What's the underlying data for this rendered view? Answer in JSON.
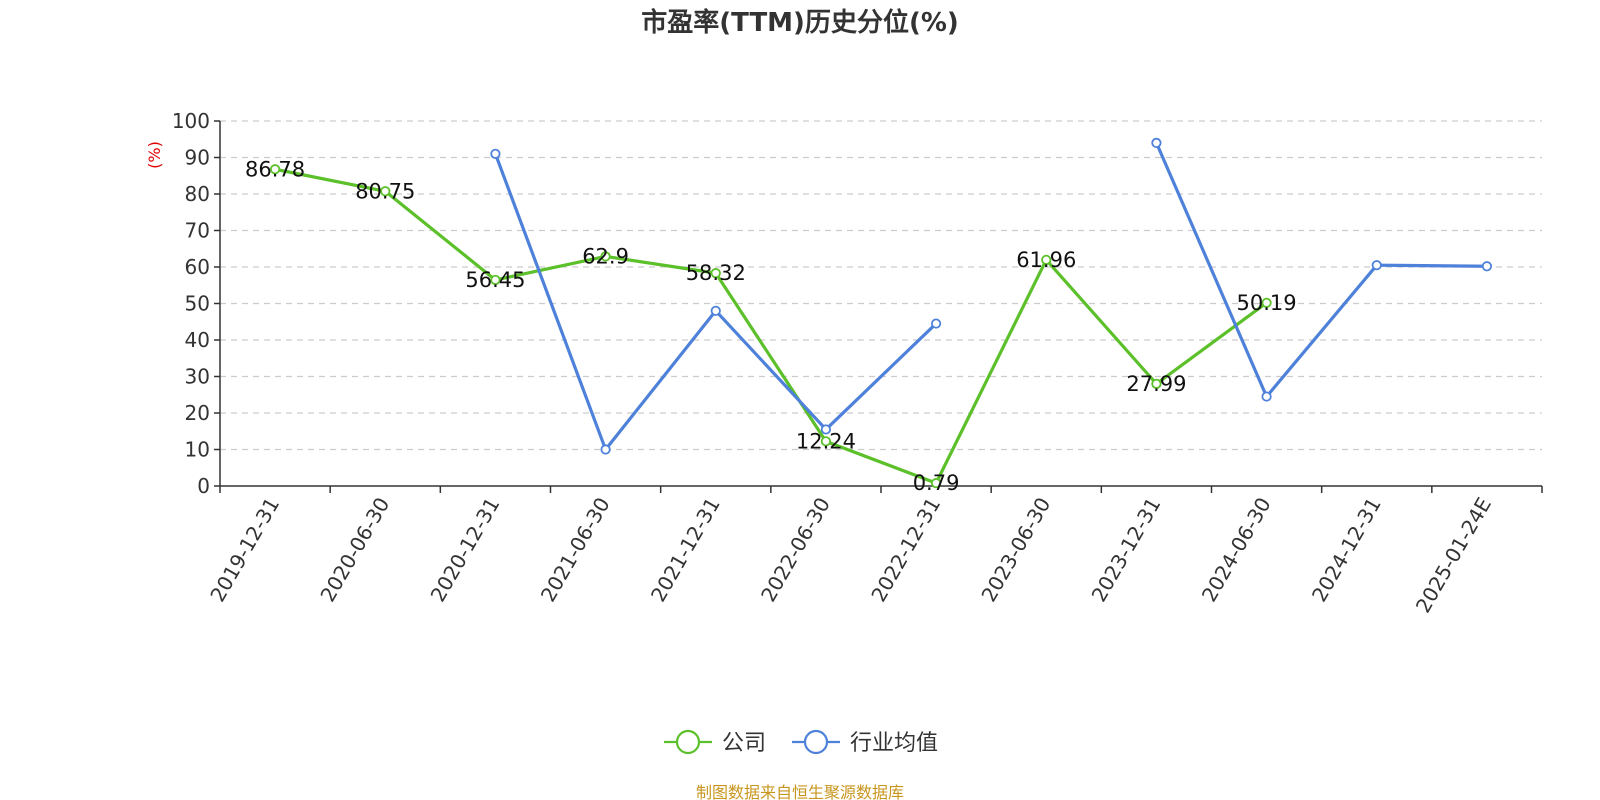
{
  "chart_data": {
    "type": "line",
    "title": "市盈率(TTM)历史分位(%)",
    "ylabel": "(%)",
    "ylim": [
      0,
      100
    ],
    "yticks": [
      0,
      10,
      20,
      30,
      40,
      50,
      60,
      70,
      80,
      90,
      100
    ],
    "categories": [
      "2019-12-31",
      "2020-06-30",
      "2020-12-31",
      "2021-06-30",
      "2021-12-31",
      "2022-06-30",
      "2022-12-31",
      "2023-06-30",
      "2023-12-31",
      "2024-06-30",
      "2024-12-31",
      "2025-01-24E"
    ],
    "grid": true,
    "legend_position": "bottom-center",
    "series": [
      {
        "name": "公司",
        "color": "#5cc02a",
        "values": [
          86.78,
          80.75,
          56.45,
          62.9,
          58.32,
          12.24,
          0.79,
          61.96,
          27.99,
          50.19,
          null,
          null
        ],
        "labels": [
          "86.78",
          "80.75",
          "56.45",
          "62.9",
          "58.32",
          "12.24",
          "0.79",
          "61.96",
          "27.99",
          "50.19",
          null,
          null
        ]
      },
      {
        "name": "行业均值",
        "color": "#4e81d9",
        "values": [
          null,
          null,
          91,
          10,
          48,
          15.5,
          44.5,
          null,
          94,
          24.5,
          60.5,
          60.2
        ]
      }
    ],
    "source": "制图数据来自恒生聚源数据库"
  }
}
